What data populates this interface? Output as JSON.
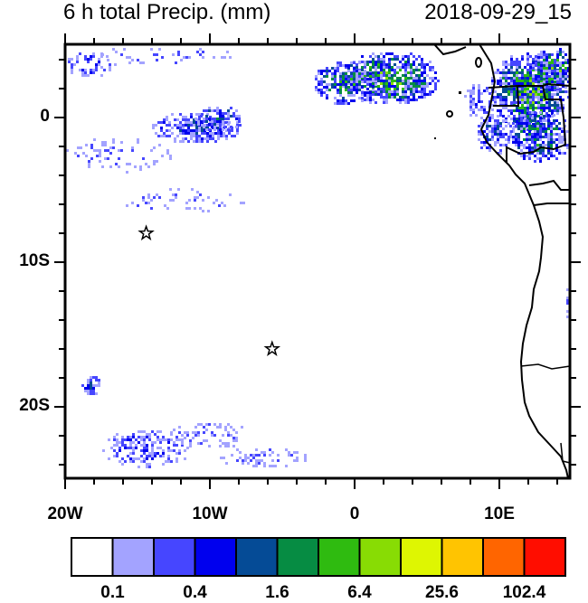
{
  "title_left": "6 h total Precip. (mm)",
  "title_right": "2018-09-29_15",
  "map": {
    "lon_range": [
      -20,
      15
    ],
    "lat_range": [
      -25,
      5
    ],
    "x_tick_labels": [
      {
        "lon": -20,
        "text": "20W"
      },
      {
        "lon": -10,
        "text": "10W"
      },
      {
        "lon": 0,
        "text": "0"
      },
      {
        "lon": 10,
        "text": "10E"
      }
    ],
    "y_tick_labels": [
      {
        "lat": 0,
        "text": "0"
      },
      {
        "lat": -10,
        "text": "10S"
      },
      {
        "lat": -20,
        "text": "20S"
      }
    ],
    "markers": [
      {
        "name": "star-marker",
        "lon": -14.4,
        "lat": -8.0
      },
      {
        "name": "star-marker",
        "lon": -5.7,
        "lat": -16.0
      }
    ]
  },
  "colorbar": {
    "colors": [
      "#ffffff",
      "#a3a3ff",
      "#4646ff",
      "#0000ee",
      "#054b96",
      "#068c43",
      "#2fbb10",
      "#88dc04",
      "#def602",
      "#ffc401",
      "#ff6500",
      "#ff0d00"
    ],
    "labels": [
      "0.1",
      "0.4",
      "1.6",
      "6.4",
      "25.6",
      "102.4"
    ]
  }
}
